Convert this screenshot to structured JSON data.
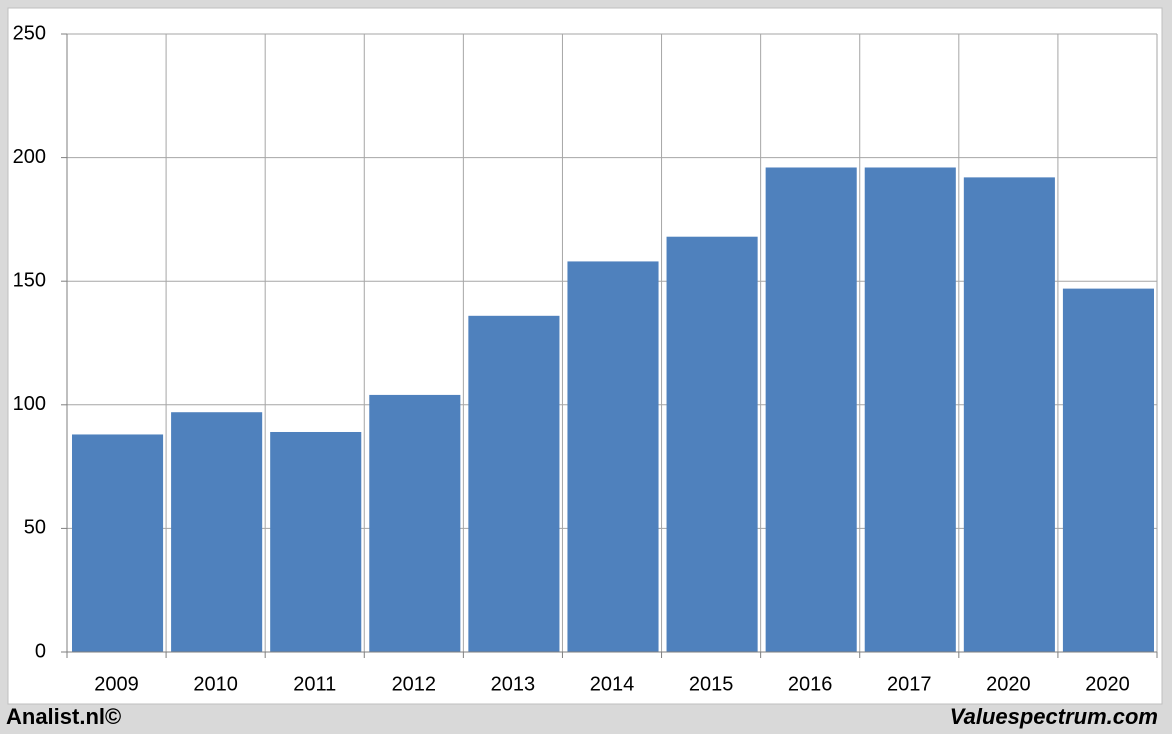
{
  "chart_data": {
    "type": "bar",
    "categories": [
      "2009",
      "2010",
      "2011",
      "2012",
      "2013",
      "2014",
      "2015",
      "2016",
      "2017",
      "2020",
      "2020"
    ],
    "values": [
      88,
      97,
      89,
      104,
      136,
      158,
      168,
      196,
      196,
      192,
      147
    ],
    "color": "#4f81bd",
    "ylim": [
      0,
      250
    ],
    "yticks": [
      0,
      50,
      100,
      150,
      200,
      250
    ],
    "grid": true,
    "annotations": [
      "Analist.nl©",
      "Valuespectrum.com"
    ]
  }
}
